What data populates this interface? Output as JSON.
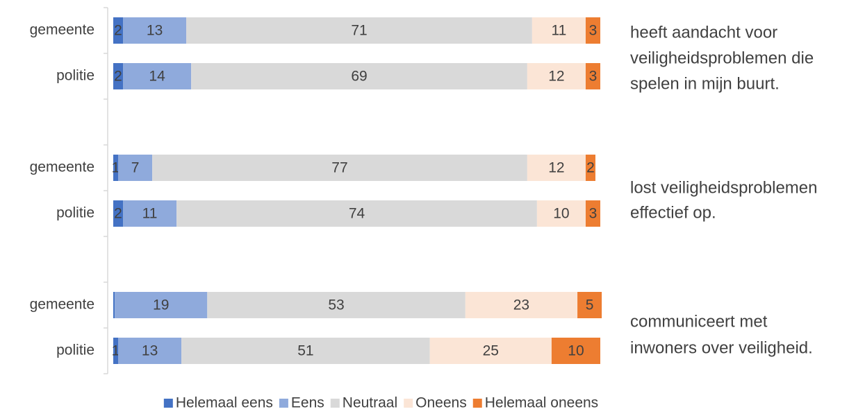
{
  "chart_data": {
    "type": "stacked-barh",
    "categories": [
      "gemeente",
      "politie",
      null,
      "gemeente",
      "politie",
      null,
      "gemeente",
      "politie"
    ],
    "series": [
      {
        "name": "Helemaal eens",
        "color": "#4472c4",
        "values": [
          2,
          2,
          null,
          1,
          2,
          null,
          0.3,
          1
        ],
        "value_labels": [
          "2",
          "2",
          null,
          "1",
          "2",
          null,
          null,
          "1"
        ]
      },
      {
        "name": "Eens",
        "color": "#8faadc",
        "values": [
          13,
          14,
          null,
          7,
          11,
          null,
          19,
          13
        ]
      },
      {
        "name": "Neutraal",
        "color": "#d9d9d9",
        "values": [
          71,
          69,
          null,
          77,
          74,
          null,
          53,
          51
        ]
      },
      {
        "name": "Oneens",
        "color": "#fbe5d6",
        "values": [
          11,
          12,
          null,
          12,
          10,
          null,
          23,
          25
        ]
      },
      {
        "name": "Helemaal oneens",
        "color": "#ed7d31",
        "values": [
          3,
          3,
          null,
          2,
          3,
          null,
          5,
          10
        ]
      }
    ],
    "xlim": [
      0,
      100
    ],
    "annotations": [
      [
        "heeft aandacht voor",
        "veiligheidsproblemen die",
        "spelen in mijn buurt."
      ],
      [
        "lost veiligheidsproblemen",
        "effectief op."
      ],
      [
        "communiceert met",
        "inwoners over veiligheid."
      ]
    ],
    "legend": "bottom"
  }
}
